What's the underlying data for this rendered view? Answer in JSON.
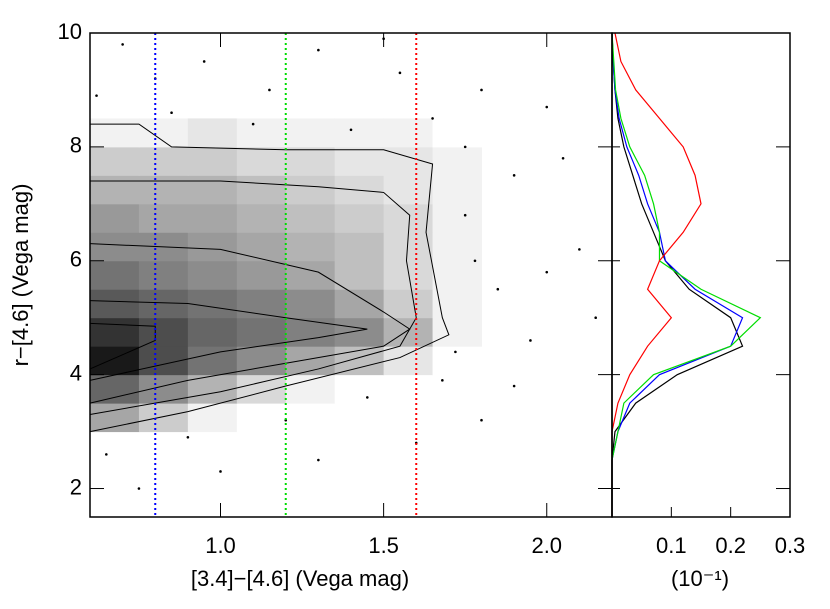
{
  "chart_data": {
    "type": "density",
    "xlabel": "[3.4]−[4.6] (Vega mag)",
    "ylabel": "r−[4.6] (Vega mag)",
    "xlim": [
      0.6,
      2.2
    ],
    "ylim": [
      1.5,
      10
    ],
    "xticks": [
      {
        "value": 1,
        "label": "1.0"
      },
      {
        "value": 1.5,
        "label": "1.5"
      },
      {
        "value": 2,
        "label": "2.0"
      }
    ],
    "yticks": [
      2,
      4,
      6,
      8,
      10
    ],
    "density": {
      "x_edges": [
        0.6,
        0.75,
        0.9,
        1.05,
        1.2,
        1.35,
        1.5,
        1.65,
        1.8
      ],
      "y_edges": [
        3,
        3.5,
        4,
        4.5,
        5,
        5.5,
        6,
        6.5,
        7,
        7.5,
        8,
        8.5
      ],
      "values": [
        [
          0.35,
          0.2,
          0.05,
          0,
          0,
          0,
          0,
          0
        ],
        [
          0.6,
          0.45,
          0.3,
          0.15,
          0.05,
          0,
          0,
          0
        ],
        [
          0.9,
          0.7,
          0.55,
          0.45,
          0.35,
          0.25,
          0.1,
          0
        ],
        [
          0.8,
          0.7,
          0.6,
          0.55,
          0.5,
          0.45,
          0.3,
          0.05
        ],
        [
          0.65,
          0.6,
          0.55,
          0.5,
          0.45,
          0.35,
          0.2,
          0.05
        ],
        [
          0.55,
          0.5,
          0.45,
          0.4,
          0.35,
          0.25,
          0.15,
          0.05
        ],
        [
          0.45,
          0.45,
          0.4,
          0.35,
          0.3,
          0.25,
          0.15,
          0.05
        ],
        [
          0.4,
          0.35,
          0.35,
          0.3,
          0.25,
          0.2,
          0.15,
          0.05
        ],
        [
          0.3,
          0.3,
          0.3,
          0.25,
          0.2,
          0.15,
          0.1,
          0.05
        ],
        [
          0.2,
          0.2,
          0.2,
          0.15,
          0.15,
          0.1,
          0.1,
          0.05
        ],
        [
          0.05,
          0.05,
          0.1,
          0.05,
          0.05,
          0.05,
          0.05,
          0
        ]
      ]
    },
    "contours": [
      {
        "x": [
          0.6,
          0.75,
          0.85,
          1.2,
          1.5,
          1.65,
          1.63,
          1.68,
          1.7,
          1.55,
          1.2,
          0.9,
          0.6
        ],
        "y": [
          8.4,
          8.4,
          8.0,
          7.95,
          7.95,
          7.7,
          6.5,
          5.0,
          4.7,
          4.3,
          3.8,
          3.35,
          3.0
        ]
      },
      {
        "x": [
          0.6,
          1.0,
          1.3,
          1.5,
          1.58,
          1.57,
          1.6,
          1.55,
          1.3,
          1.0,
          0.6
        ],
        "y": [
          7.4,
          7.4,
          7.3,
          7.2,
          6.8,
          6.0,
          5.0,
          4.5,
          4.1,
          3.7,
          3.3
        ]
      },
      {
        "x": [
          0.6,
          1.0,
          1.3,
          1.5,
          1.58,
          1.5,
          1.2,
          0.9,
          0.6
        ],
        "y": [
          6.3,
          6.2,
          5.8,
          5.1,
          4.8,
          4.5,
          4.2,
          3.9,
          3.5
        ]
      },
      {
        "x": [
          0.6,
          0.9,
          1.2,
          1.45,
          1.3,
          1.0,
          0.6
        ],
        "y": [
          5.3,
          5.25,
          5.0,
          4.8,
          4.65,
          4.4,
          3.9
        ]
      },
      {
        "x": [
          0.6,
          0.8,
          0.8,
          0.6
        ],
        "y": [
          4.9,
          4.85,
          4.6,
          4.1
        ]
      }
    ],
    "scatter": {
      "x": [
        0.7,
        0.95,
        1.3,
        1.55,
        1.8,
        2.0,
        1.9,
        2.1,
        1.85,
        1.75,
        1.95,
        2.15,
        1.72,
        1.8,
        1.6,
        1.3,
        1.0,
        0.75,
        0.65,
        0.9,
        1.2,
        1.45,
        0.62,
        0.85,
        1.1,
        1.4,
        1.65,
        1.75,
        1.78,
        2.05,
        1.5,
        0.8,
        1.15,
        1.9,
        2.0,
        1.68
      ],
      "y": [
        9.8,
        9.5,
        9.7,
        9.3,
        9.0,
        8.7,
        7.5,
        6.2,
        5.5,
        6.8,
        4.6,
        5.0,
        4.4,
        3.2,
        2.8,
        2.5,
        2.3,
        2.0,
        2.6,
        2.9,
        3.2,
        3.6,
        8.9,
        8.6,
        8.4,
        8.3,
        8.5,
        8.0,
        6.0,
        7.8,
        9.9,
        9.2,
        9.0,
        3.8,
        5.8,
        3.9
      ]
    },
    "vlines": [
      {
        "value": 0.8,
        "color": "#0000ff"
      },
      {
        "value": 1.2,
        "color": "#00dd00"
      },
      {
        "value": 1.6,
        "color": "#ff0000"
      }
    ],
    "side": {
      "xlabel": "(10⁻¹)",
      "xlim": [
        0,
        0.3
      ],
      "xticks": [
        0.1,
        0.2,
        0.3
      ],
      "y": [
        1.5,
        2,
        2.5,
        3,
        3.5,
        4,
        4.5,
        5,
        5.5,
        6,
        6.5,
        7,
        7.5,
        8,
        8.5,
        9,
        9.5,
        10
      ],
      "series": [
        {
          "color": "#000000",
          "values": [
            0,
            0,
            0,
            0.005,
            0.04,
            0.11,
            0.22,
            0.2,
            0.13,
            0.09,
            0.07,
            0.05,
            0.035,
            0.02,
            0.01,
            0.005,
            0.002,
            0
          ]
        },
        {
          "color": "#0000ff",
          "values": [
            0,
            0,
            0,
            0.01,
            0.03,
            0.08,
            0.2,
            0.22,
            0.14,
            0.09,
            0.08,
            0.06,
            0.045,
            0.025,
            0.012,
            0.005,
            0.002,
            0
          ]
        },
        {
          "color": "#00dd00",
          "values": [
            0,
            0,
            0,
            0.01,
            0.02,
            0.07,
            0.2,
            0.25,
            0.15,
            0.08,
            0.08,
            0.07,
            0.055,
            0.03,
            0.015,
            0.006,
            0.003,
            0
          ]
        },
        {
          "color": "#ff0000",
          "values": [
            0,
            0,
            0,
            0,
            0.01,
            0.03,
            0.06,
            0.1,
            0.06,
            0.08,
            0.12,
            0.15,
            0.14,
            0.12,
            0.08,
            0.04,
            0.015,
            0.005
          ]
        }
      ]
    }
  }
}
